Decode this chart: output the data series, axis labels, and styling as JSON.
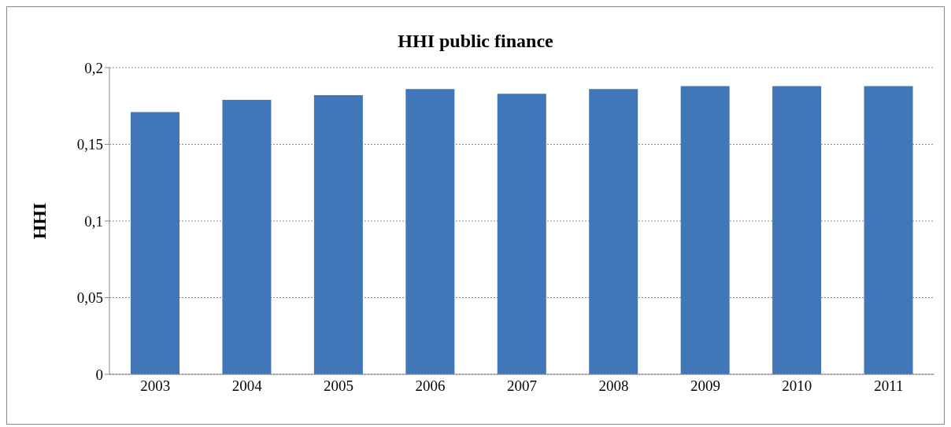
{
  "chart_data": {
    "type": "bar",
    "title": "HHI public finance",
    "ylabel": "HHI",
    "categories": [
      "2003",
      "2004",
      "2005",
      "2006",
      "2007",
      "2008",
      "2009",
      "2010",
      "2011"
    ],
    "values": [
      0.171,
      0.179,
      0.182,
      0.186,
      0.183,
      0.186,
      0.188,
      0.188,
      0.188
    ],
    "color": "#4177b8",
    "ylim": [
      0,
      0.2
    ],
    "yticks": [
      {
        "value": 0,
        "label": "0"
      },
      {
        "value": 0.05,
        "label": "0,05"
      },
      {
        "value": 0.1,
        "label": "0,1"
      },
      {
        "value": 0.15,
        "label": "0,15"
      },
      {
        "value": 0.2,
        "label": "0,2"
      }
    ],
    "grid": "y",
    "legend": false
  }
}
